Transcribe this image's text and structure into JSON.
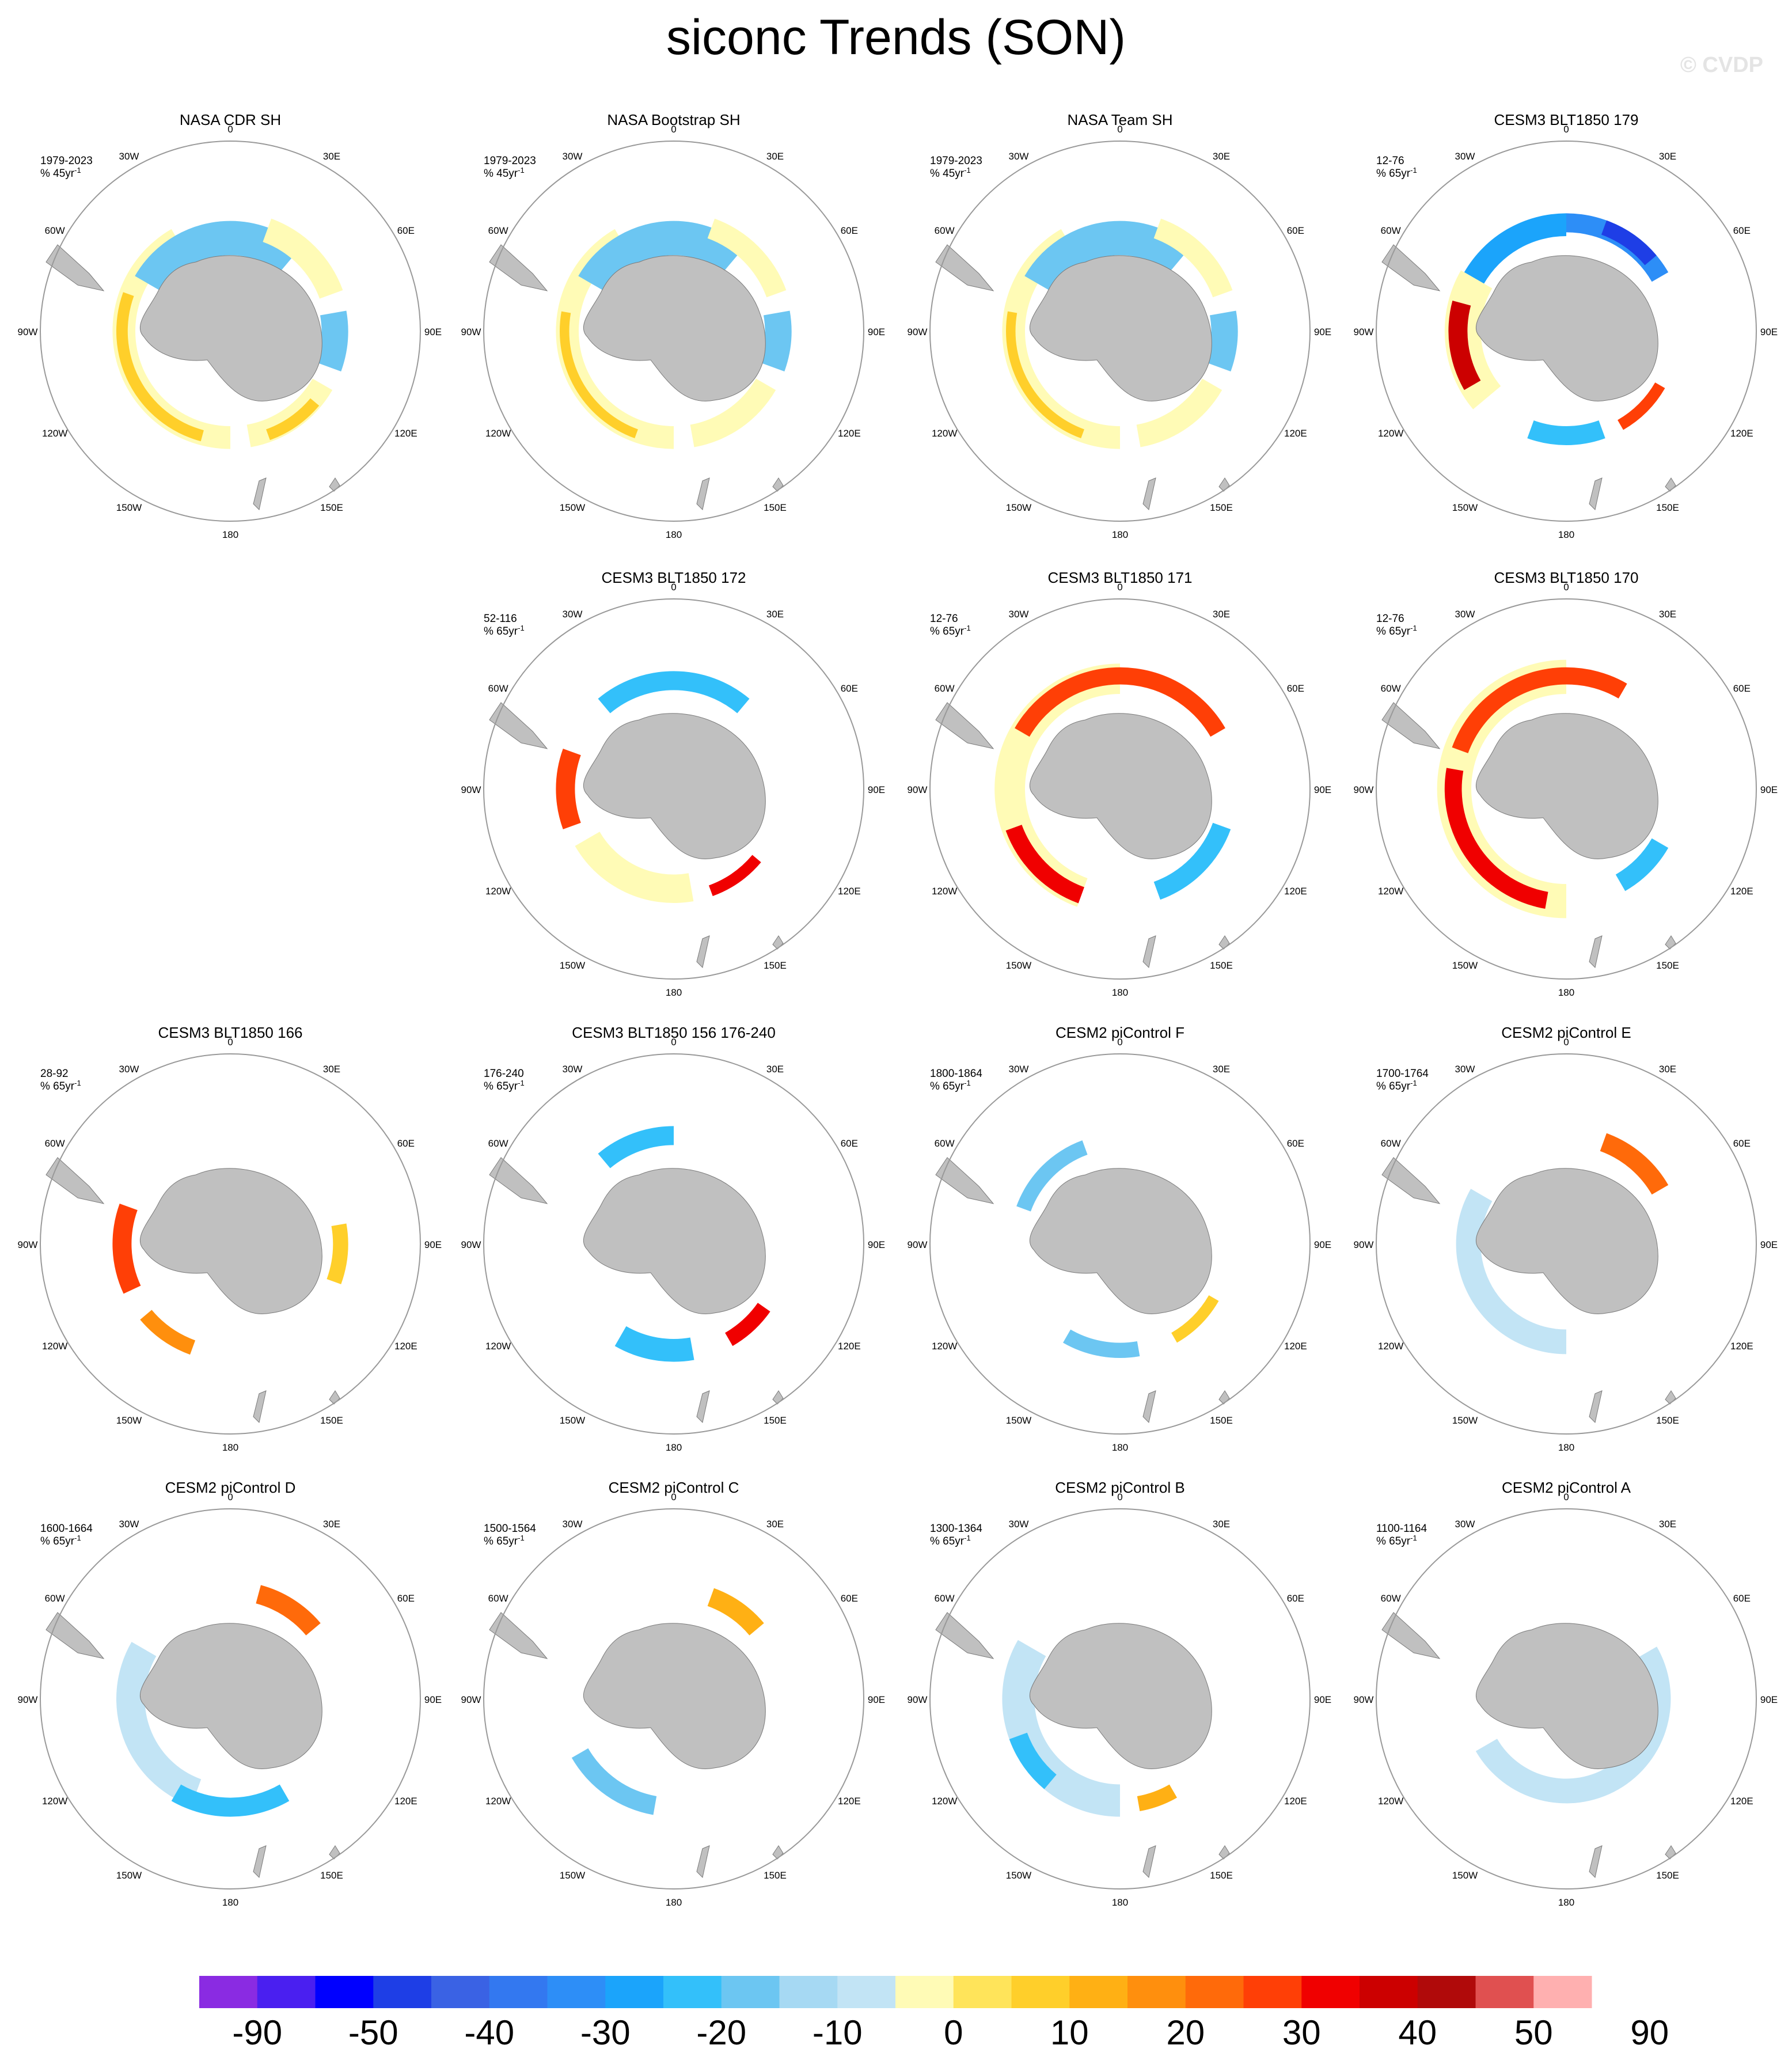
{
  "title": "siconc Trends (SON)",
  "credit": "© CVDP",
  "colors": {
    "land": "#c0c0c0",
    "ice_edge": "#cfe8f6",
    "palette": [
      "#8a2be2",
      "#4a1ff0",
      "#0000ff",
      "#1e3ee6",
      "#3a62e4",
      "#3378f0",
      "#2d8ef7",
      "#1ba4fb",
      "#33c0fa",
      "#6cc6f2",
      "#a6d9f3",
      "#c2e4f5",
      "#fffbb6",
      "#ffe45a",
      "#ffcf2a",
      "#ffb014",
      "#ff8f0d",
      "#ff6a0a",
      "#ff3f06",
      "#f00000",
      "#cc0000",
      "#b00a0a",
      "#e05050",
      "#ffb0b0"
    ]
  },
  "colorbar_labels": [
    "-90",
    "-50",
    "-40",
    "-30",
    "-20",
    "-10",
    "0",
    "10",
    "20",
    "30",
    "40",
    "50",
    "90"
  ],
  "lon_labels": [
    "0",
    "30E",
    "60E",
    "90E",
    "120E",
    "150E",
    "180",
    "150W",
    "120W",
    "90W",
    "60W",
    "30W"
  ],
  "panels": [
    {
      "title": "NASA CDR SH",
      "period": "1979-2023",
      "units": "% 45yr",
      "sup": "-1",
      "pattern": "obs"
    },
    {
      "title": "NASA Bootstrap SH",
      "period": "1979-2023",
      "units": "% 45yr",
      "sup": "-1",
      "pattern": "obs2"
    },
    {
      "title": "NASA Team SH",
      "period": "1979-2023",
      "units": "% 45yr",
      "sup": "-1",
      "pattern": "obs2"
    },
    {
      "title": "CESM3 BLT1850 179",
      "period": "12-76",
      "units": "% 65yr",
      "sup": "-1",
      "pattern": "c179"
    },
    null,
    {
      "title": "CESM3 BLT1850 172",
      "period": "52-116",
      "units": "% 65yr",
      "sup": "-1",
      "pattern": "c172"
    },
    {
      "title": "CESM3 BLT1850 171",
      "period": "12-76",
      "units": "% 65yr",
      "sup": "-1",
      "pattern": "c171"
    },
    {
      "title": "CESM3 BLT1850 170",
      "period": "12-76",
      "units": "% 65yr",
      "sup": "-1",
      "pattern": "c170"
    },
    {
      "title": "CESM3 BLT1850 166",
      "period": "28-92",
      "units": "% 65yr",
      "sup": "-1",
      "pattern": "c166"
    },
    {
      "title": "CESM3 BLT1850 156 176-240",
      "period": "176-240",
      "units": "% 65yr",
      "sup": "-1",
      "pattern": "c156"
    },
    {
      "title": "CESM2 piControl F",
      "period": "1800-1864",
      "units": "% 65yr",
      "sup": "-1",
      "pattern": "pF"
    },
    {
      "title": "CESM2 piControl E",
      "period": "1700-1764",
      "units": "% 65yr",
      "sup": "-1",
      "pattern": "pE"
    },
    {
      "title": "CESM2 piControl D",
      "period": "1600-1664",
      "units": "% 65yr",
      "sup": "-1",
      "pattern": "pD"
    },
    {
      "title": "CESM2 piControl C",
      "period": "1500-1564",
      "units": "% 65yr",
      "sup": "-1",
      "pattern": "pC"
    },
    {
      "title": "CESM2 piControl B",
      "period": "1300-1364",
      "units": "% 65yr",
      "sup": "-1",
      "pattern": "pB"
    },
    {
      "title": "CESM2 piControl A",
      "period": "1100-1164",
      "units": "% 65yr",
      "sup": "-1",
      "pattern": "pA"
    }
  ]
}
